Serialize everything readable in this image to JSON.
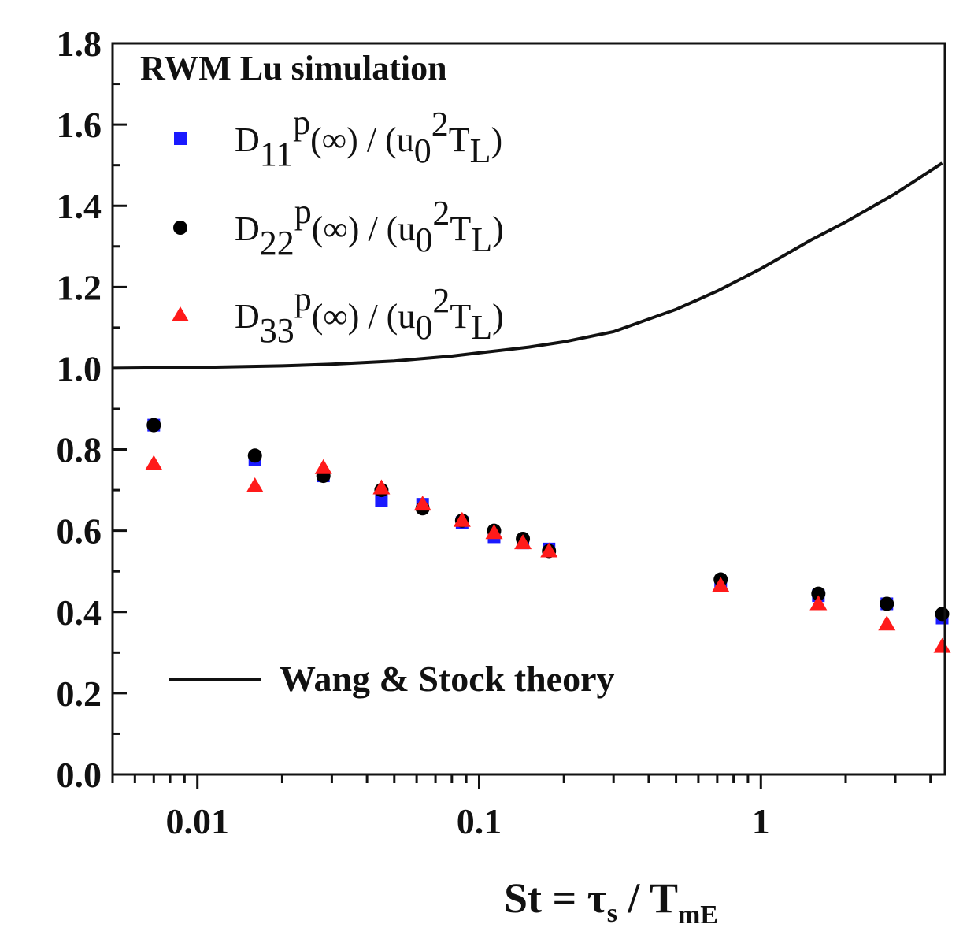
{
  "chart_data": {
    "type": "scatter",
    "title": "",
    "xscale": "log",
    "xlim": [
      0.005,
      4.5
    ],
    "ylim": [
      0.0,
      1.8
    ],
    "x_ticks": [
      {
        "value": 0.01,
        "label": "0.01"
      },
      {
        "value": 0.1,
        "label": "0.1"
      },
      {
        "value": 1,
        "label": "1"
      }
    ],
    "y_ticks": [
      {
        "value": 0.0,
        "label": "0.0"
      },
      {
        "value": 0.2,
        "label": "0.2"
      },
      {
        "value": 0.4,
        "label": "0.4"
      },
      {
        "value": 0.6,
        "label": "0.6"
      },
      {
        "value": 0.8,
        "label": "0.8"
      },
      {
        "value": 1.0,
        "label": "1.0"
      },
      {
        "value": 1.2,
        "label": "1.2"
      },
      {
        "value": 1.4,
        "label": "1.4"
      },
      {
        "value": 1.6,
        "label": "1.6"
      },
      {
        "value": 1.8,
        "label": "1.8"
      }
    ],
    "xlabel": {
      "main": "St = τ",
      "sub1": "s",
      "mid": " / T",
      "sub2": "mE"
    },
    "ylabel": "",
    "legend_title": "RWM Lu simulation",
    "x": [
      0.007,
      0.016,
      0.028,
      0.045,
      0.063,
      0.087,
      0.113,
      0.143,
      0.177,
      0.72,
      1.6,
      2.8,
      4.4
    ],
    "series": [
      {
        "name": "D11",
        "legend": {
          "base": "D",
          "sub": "11",
          "sup": "p",
          "tail": "(∞) / (u",
          "sub2": "0",
          "sup2": "2",
          "tail2": "T",
          "sub3": "L",
          "end": ")"
        },
        "marker": "square",
        "color": "#1a1aff",
        "values": [
          0.86,
          0.775,
          0.735,
          0.675,
          0.665,
          0.62,
          0.585,
          0.57,
          0.555,
          0.47,
          0.44,
          0.42,
          0.385
        ]
      },
      {
        "name": "D22",
        "legend": {
          "base": "D",
          "sub": "22",
          "sup": "p",
          "tail": "(∞) / (u",
          "sub2": "0",
          "sup2": "2",
          "tail2": "T",
          "sub3": "L",
          "end": ")"
        },
        "marker": "circle",
        "color": "#000000",
        "values": [
          0.86,
          0.785,
          0.735,
          0.7,
          0.655,
          0.625,
          0.6,
          0.58,
          0.55,
          0.48,
          0.445,
          0.42,
          0.395
        ]
      },
      {
        "name": "D33",
        "legend": {
          "base": "D",
          "sub": "33",
          "sup": "p",
          "tail": "(∞) / (u",
          "sub2": "0",
          "sup2": "2",
          "tail2": "T",
          "sub3": "L",
          "end": ")"
        },
        "marker": "triangle",
        "color": "#ff1a1a",
        "values": [
          0.765,
          0.71,
          0.755,
          0.705,
          0.665,
          0.625,
          0.595,
          0.57,
          0.55,
          0.465,
          0.42,
          0.37,
          0.315
        ]
      }
    ],
    "theory_line": {
      "name": "Wang & Stock  theory",
      "x": [
        0.005,
        0.01,
        0.02,
        0.03,
        0.05,
        0.08,
        0.1,
        0.15,
        0.2,
        0.3,
        0.5,
        0.7,
        1.0,
        1.5,
        2.0,
        3.0,
        4.4
      ],
      "y": [
        1.0,
        1.002,
        1.006,
        1.01,
        1.018,
        1.03,
        1.038,
        1.052,
        1.065,
        1.09,
        1.145,
        1.19,
        1.245,
        1.315,
        1.36,
        1.43,
        1.505
      ]
    }
  }
}
